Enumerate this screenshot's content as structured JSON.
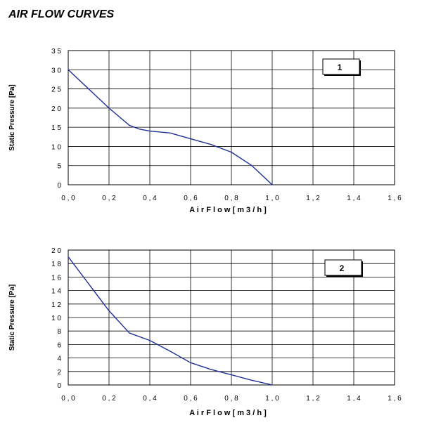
{
  "page": {
    "title": "AIR FLOW CURVES"
  },
  "chart_data": [
    {
      "type": "line",
      "number": "1",
      "xlabel": "A i r  F l o w   [ m 3 / h ]",
      "ylabel": "Static Pressure [Pa]",
      "xlim": [
        0,
        1.6
      ],
      "ylim": [
        0,
        35
      ],
      "grid": true,
      "x_ticks": [
        0,
        0.2,
        0.4,
        0.6,
        0.8,
        1.0,
        1.2,
        1.4,
        1.6
      ],
      "x_tick_labels": [
        "0 , 0",
        "0 , 2",
        "0 , 4",
        "0 , 6",
        "0 , 8",
        "1 , 0",
        "1 , 2",
        "1 , 4",
        "1 , 6"
      ],
      "y_ticks": [
        0,
        5,
        10,
        15,
        20,
        25,
        30,
        35
      ],
      "y_tick_labels": [
        "0",
        "5",
        "1 0",
        "1 5",
        "2 0",
        "2 5",
        "3 0",
        "3 5"
      ],
      "series": [
        {
          "color": "#1f2f9a",
          "x": [
            0,
            0.1,
            0.2,
            0.3,
            0.35,
            0.4,
            0.5,
            0.6,
            0.7,
            0.8,
            0.9,
            1.0
          ],
          "y": [
            30,
            25,
            20,
            15.5,
            14.5,
            14,
            13.5,
            12,
            10.5,
            8.5,
            5,
            0
          ]
        }
      ]
    },
    {
      "type": "line",
      "number": "2",
      "xlabel": "A i r  F l o w   [ m 3 / h ]",
      "ylabel": "Static Pressure [Pa]",
      "xlim": [
        0,
        1.6
      ],
      "ylim": [
        0,
        20
      ],
      "grid": true,
      "x_ticks": [
        0,
        0.2,
        0.4,
        0.6,
        0.8,
        1.0,
        1.2,
        1.4,
        1.6
      ],
      "x_tick_labels": [
        "0 , 0",
        "0 , 2",
        "0 , 4",
        "0 , 6",
        "0 , 8",
        "1 , 0",
        "1 , 2",
        "1 , 4",
        "1 , 6"
      ],
      "y_ticks": [
        0,
        2,
        4,
        6,
        8,
        10,
        12,
        14,
        16,
        18,
        20
      ],
      "y_tick_labels": [
        "0",
        "2",
        "4",
        "6",
        "8",
        "1 0",
        "1 2",
        "1 4",
        "1 6",
        "1 8",
        "2 0"
      ],
      "series": [
        {
          "color": "#1f2f9a",
          "x": [
            0,
            0.1,
            0.2,
            0.3,
            0.4,
            0.5,
            0.6,
            0.7,
            0.8,
            0.9,
            1.0
          ],
          "y": [
            19,
            15,
            11,
            7.7,
            6.6,
            5,
            3.3,
            2.3,
            1.5,
            0.7,
            0
          ]
        }
      ]
    }
  ]
}
